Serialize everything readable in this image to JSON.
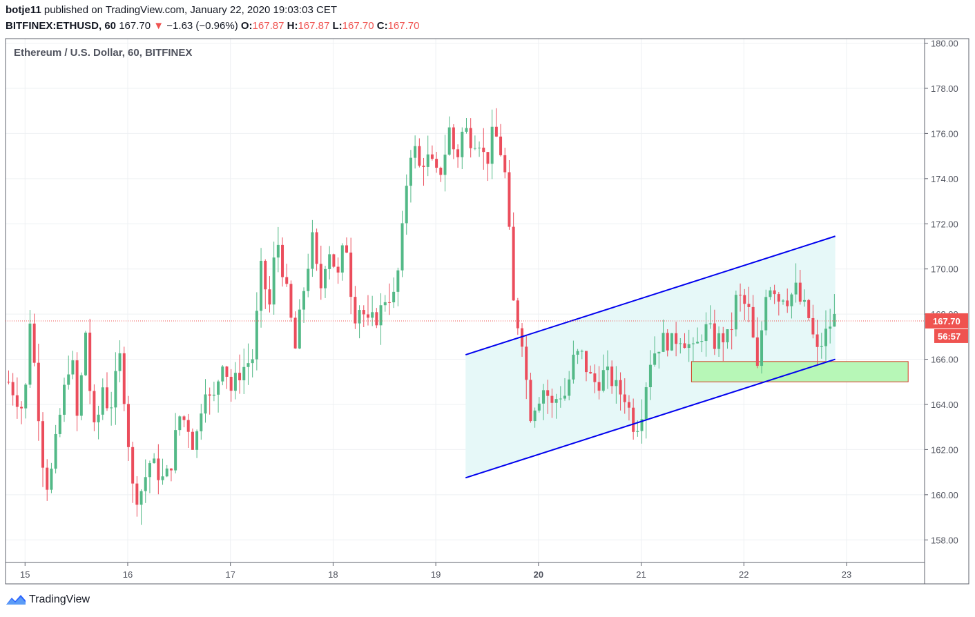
{
  "header": {
    "author": "botje11",
    "published_text": "published on TradingView.com, January 22, 2020 19:03:03 CET",
    "symbol": "BITFINEX:ETHUSD, 60",
    "last": "167.70",
    "change_arrow": "▼",
    "change": "−1.63 (−0.96%)",
    "o_label": "O:",
    "o_value": "167.87",
    "h_label": "H:",
    "h_value": "167.87",
    "l_label": "L:",
    "l_value": "167.70",
    "c_label": "C:",
    "c_value": "167.70"
  },
  "footer": {
    "brand": "TradingView",
    "icon": "tradingview-logo-icon"
  },
  "colors": {
    "up": "#53b987",
    "down": "#eb4d5c",
    "channel_line": "#0000ee",
    "channel_fill": "#e6f8f8",
    "zone_fill": "#b7f7b7",
    "zone_border": "#d23b20",
    "last_price": "#ef5350"
  },
  "chart_data": {
    "type": "candlestick",
    "title": "Ethereum / U.S. Dollar, 60, BITFINEX",
    "x_axis": {
      "labels": [
        {
          "t": 0,
          "label": "15"
        },
        {
          "t": 1,
          "label": "16"
        },
        {
          "t": 2,
          "label": "17"
        },
        {
          "t": 3,
          "label": "18"
        },
        {
          "t": 4,
          "label": "19"
        },
        {
          "t": 5,
          "label": "20",
          "bold": true
        },
        {
          "t": 6,
          "label": "21"
        },
        {
          "t": 7,
          "label": "22"
        },
        {
          "t": 8,
          "label": "23"
        }
      ],
      "range": [
        -0.19,
        8.76
      ]
    },
    "y_axis": {
      "ticks": [
        "158.00",
        "160.00",
        "162.00",
        "164.00",
        "166.00",
        "168.00",
        "170.00",
        "172.00",
        "174.00",
        "176.00",
        "178.00",
        "180.00"
      ],
      "range": [
        157.0,
        180.2
      ],
      "grid": true
    },
    "last_price": {
      "value": 167.7,
      "label": "167.70",
      "countdown": "56:57"
    },
    "channel": {
      "upper": [
        [
          4.29,
          166.2
        ],
        [
          7.89,
          171.45
        ]
      ],
      "lower": [
        [
          4.29,
          160.75
        ],
        [
          7.89,
          166.0
        ]
      ],
      "fill_range": [
        4.29,
        7.89
      ]
    },
    "zone": {
      "t_start": 6.49,
      "t_end": 8.6,
      "low": 165.0,
      "high": 165.9
    },
    "pivots": [
      [
        -0.16,
        165.0
      ],
      [
        0.0,
        163.6
      ],
      [
        0.03,
        168.7
      ],
      [
        0.08,
        166.3
      ],
      [
        0.18,
        161.2
      ],
      [
        0.23,
        160.2
      ],
      [
        0.35,
        163.8
      ],
      [
        0.45,
        166.4
      ],
      [
        0.52,
        162.7
      ],
      [
        0.58,
        167.9
      ],
      [
        0.62,
        165.2
      ],
      [
        0.68,
        162.5
      ],
      [
        0.76,
        164.9
      ],
      [
        0.82,
        163.6
      ],
      [
        0.93,
        166.2
      ],
      [
        1.05,
        160.2
      ],
      [
        1.11,
        159.9
      ],
      [
        1.22,
        161.5
      ],
      [
        1.35,
        160.6
      ],
      [
        1.41,
        161.1
      ],
      [
        1.5,
        163.5
      ],
      [
        1.58,
        163.2
      ],
      [
        1.65,
        162.0
      ],
      [
        1.75,
        165.0
      ],
      [
        1.82,
        163.8
      ],
      [
        1.93,
        166.2
      ],
      [
        2.0,
        164.6
      ],
      [
        2.1,
        165.5
      ],
      [
        2.22,
        166.1
      ],
      [
        2.3,
        170.0
      ],
      [
        2.38,
        168.3
      ],
      [
        2.45,
        171.5
      ],
      [
        2.52,
        169.7
      ],
      [
        2.58,
        168.0
      ],
      [
        2.63,
        166.4
      ],
      [
        2.73,
        169.6
      ],
      [
        2.8,
        171.3
      ],
      [
        2.87,
        168.9
      ],
      [
        2.95,
        171.1
      ],
      [
        3.05,
        169.6
      ],
      [
        3.12,
        171.5
      ],
      [
        3.2,
        167.9
      ],
      [
        3.28,
        168.5
      ],
      [
        3.32,
        167.4
      ],
      [
        3.45,
        168.0
      ],
      [
        3.52,
        168.9
      ],
      [
        3.6,
        168.7
      ],
      [
        3.66,
        170.9
      ],
      [
        3.72,
        174.1
      ],
      [
        3.78,
        176.0
      ],
      [
        3.82,
        174.3
      ],
      [
        3.9,
        175.0
      ],
      [
        3.96,
        174.6
      ],
      [
        4.02,
        174.0
      ],
      [
        4.07,
        174.7
      ],
      [
        4.13,
        176.2
      ],
      [
        4.2,
        174.8
      ],
      [
        4.27,
        176.3
      ],
      [
        4.34,
        175.8
      ],
      [
        4.42,
        175.8
      ],
      [
        4.49,
        174.6
      ],
      [
        4.56,
        176.1
      ],
      [
        4.62,
        175.5
      ],
      [
        4.68,
        174.0
      ],
      [
        4.76,
        168.2
      ],
      [
        4.85,
        166.8
      ],
      [
        4.91,
        163.5
      ],
      [
        4.97,
        164.1
      ],
      [
        5.06,
        164.8
      ],
      [
        5.13,
        163.9
      ],
      [
        5.2,
        164.5
      ],
      [
        5.27,
        164.4
      ],
      [
        5.33,
        165.9
      ],
      [
        5.41,
        166.3
      ],
      [
        5.5,
        165.2
      ],
      [
        5.57,
        164.9
      ],
      [
        5.64,
        165.4
      ],
      [
        5.71,
        165.1
      ],
      [
        5.77,
        164.6
      ],
      [
        5.84,
        164.4
      ],
      [
        5.9,
        163.5
      ],
      [
        5.94,
        162.9
      ],
      [
        6.0,
        163.6
      ],
      [
        6.08,
        165.9
      ],
      [
        6.16,
        166.6
      ],
      [
        6.23,
        166.9
      ],
      [
        6.3,
        166.7
      ],
      [
        6.37,
        167.1
      ],
      [
        6.44,
        166.8
      ],
      [
        6.52,
        166.2
      ],
      [
        6.58,
        167.1
      ],
      [
        6.65,
        167.4
      ],
      [
        6.72,
        166.7
      ],
      [
        6.78,
        167.0
      ],
      [
        6.86,
        166.9
      ],
      [
        6.93,
        168.8
      ],
      [
        6.98,
        168.6
      ],
      [
        7.06,
        168.0
      ],
      [
        7.1,
        166.4
      ],
      [
        7.14,
        165.2
      ],
      [
        7.2,
        169.0
      ],
      [
        7.28,
        169.4
      ],
      [
        7.34,
        168.7
      ],
      [
        7.38,
        168.9
      ],
      [
        7.45,
        168.6
      ],
      [
        7.49,
        169.3
      ],
      [
        7.56,
        168.4
      ],
      [
        7.62,
        168.1
      ],
      [
        7.66,
        167.2
      ],
      [
        7.72,
        166.2
      ],
      [
        7.77,
        166.9
      ],
      [
        7.82,
        167.3
      ],
      [
        7.87,
        167.9
      ],
      [
        7.9,
        167.7
      ]
    ]
  }
}
